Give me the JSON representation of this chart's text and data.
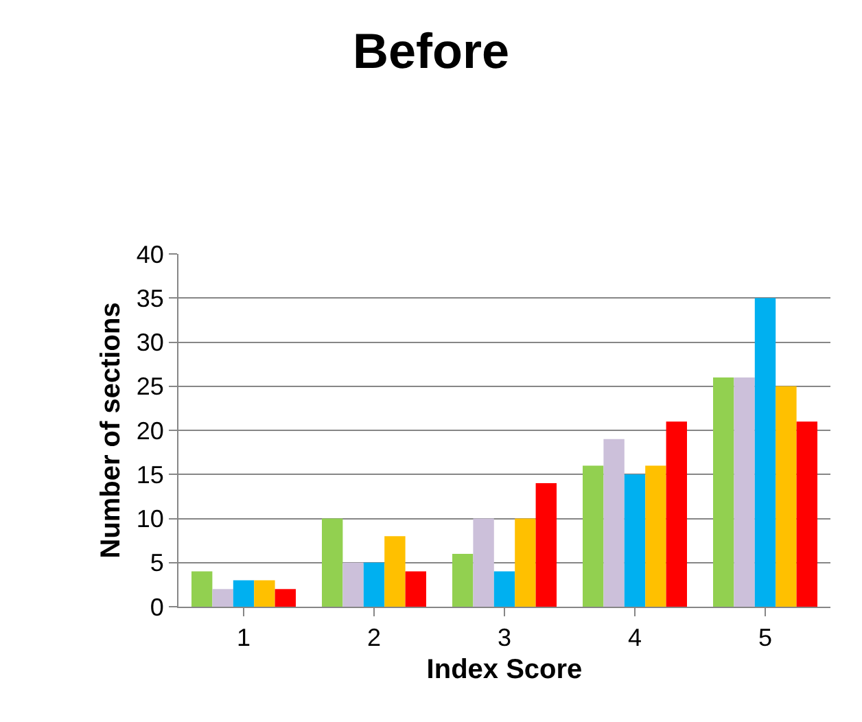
{
  "chart_data": {
    "type": "bar",
    "title": "Before",
    "xlabel": "Index Score",
    "ylabel": "Number of sections",
    "categories": [
      "1",
      "2",
      "3",
      "4",
      "5"
    ],
    "series": [
      {
        "color": "#92d050",
        "values": [
          4,
          10,
          6,
          16,
          26
        ]
      },
      {
        "color": "#ccc0da",
        "values": [
          2,
          5,
          10,
          19,
          26
        ]
      },
      {
        "color": "#00b0f0",
        "values": [
          3,
          5,
          4,
          15,
          35
        ]
      },
      {
        "color": "#ffc000",
        "values": [
          3,
          8,
          10,
          16,
          25
        ]
      },
      {
        "color": "#ff0000",
        "values": [
          2,
          4,
          14,
          21,
          21
        ]
      }
    ],
    "ylim": [
      0,
      40
    ],
    "yticks": [
      0,
      5,
      10,
      15,
      20,
      25,
      30,
      35,
      40
    ],
    "grid": "y"
  }
}
